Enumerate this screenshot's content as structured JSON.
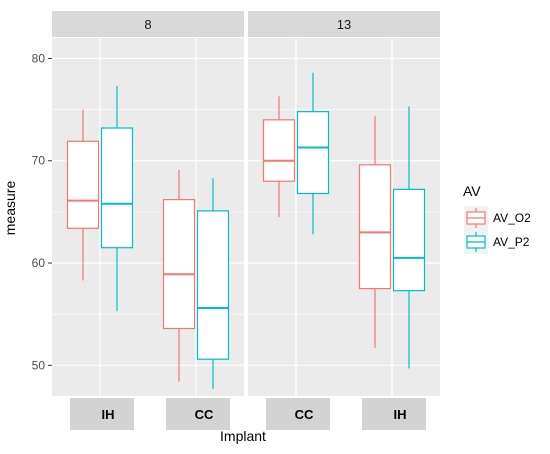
{
  "chart_data": {
    "type": "boxplot",
    "xlabel": "Implant",
    "ylabel": "measure",
    "ylim": [
      47,
      82
    ],
    "y_ticks": [
      50,
      60,
      70,
      80
    ],
    "legend": {
      "title": "AV",
      "position": "right",
      "entries": [
        {
          "name": "AV_O2",
          "color": "#f8766d"
        },
        {
          "name": "AV_P2",
          "color": "#00bfc4"
        }
      ]
    },
    "facets": [
      {
        "label": "8",
        "categories": [
          {
            "name": "IH",
            "boxes": [
              {
                "series": "AV_O2",
                "min": 58.3,
                "q1": 63.4,
                "median": 66.1,
                "q3": 71.9,
                "max": 75.0
              },
              {
                "series": "AV_P2",
                "min": 55.3,
                "q1": 61.5,
                "median": 65.8,
                "q3": 73.2,
                "max": 77.3
              }
            ]
          },
          {
            "name": "CC",
            "boxes": [
              {
                "series": "AV_O2",
                "min": 48.4,
                "q1": 53.6,
                "median": 58.9,
                "q3": 66.2,
                "max": 69.1
              },
              {
                "series": "AV_P2",
                "min": 47.7,
                "q1": 50.6,
                "median": 55.6,
                "q3": 65.1,
                "max": 68.3
              }
            ]
          }
        ]
      },
      {
        "label": "13",
        "categories": [
          {
            "name": "CC",
            "boxes": [
              {
                "series": "AV_O2",
                "min": 64.5,
                "q1": 68.0,
                "median": 70.0,
                "q3": 74.0,
                "max": 76.3
              },
              {
                "series": "AV_P2",
                "min": 62.8,
                "q1": 66.8,
                "median": 71.3,
                "q3": 74.8,
                "max": 78.6
              }
            ]
          },
          {
            "name": "IH",
            "boxes": [
              {
                "series": "AV_O2",
                "min": 51.7,
                "q1": 57.5,
                "median": 63.0,
                "q3": 69.6,
                "max": 74.4
              },
              {
                "series": "AV_P2",
                "min": 49.7,
                "q1": 57.3,
                "median": 60.5,
                "q3": 67.2,
                "max": 75.3
              }
            ]
          }
        ]
      }
    ],
    "colors": {
      "panel_bg": "#ebebeb",
      "grid": "#ffffff",
      "strip_bg": "#d9d9d9",
      "category_label_bg": "#d3d3d3"
    }
  }
}
